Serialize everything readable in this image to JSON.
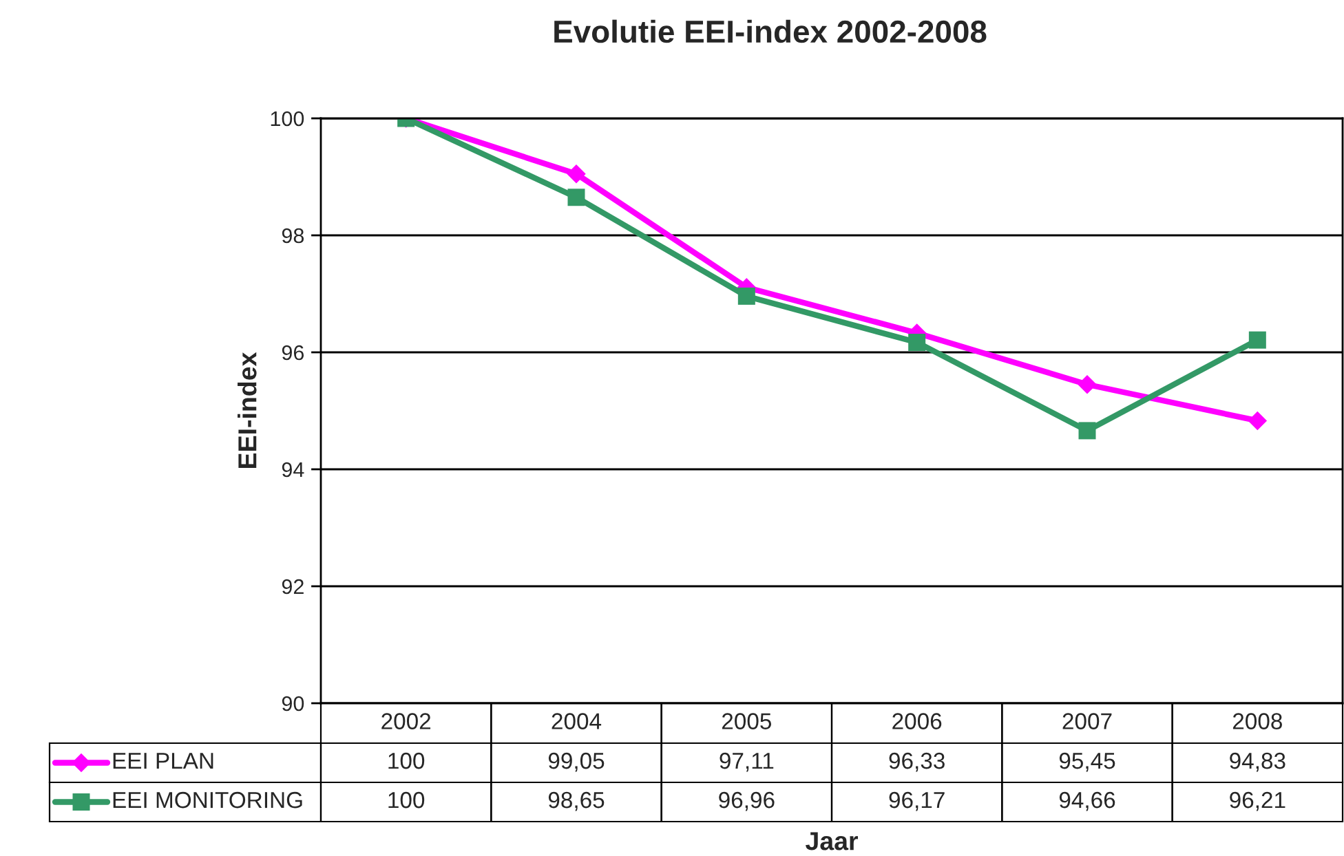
{
  "chart_data": {
    "type": "line",
    "title": "Evolutie EEI-index 2002-2008",
    "xlabel": "Jaar",
    "ylabel": "EEI-index",
    "categories": [
      "2002",
      "2004",
      "2005",
      "2006",
      "2007",
      "2008"
    ],
    "series": [
      {
        "name": "EEI PLAN",
        "color": "#ff00ff",
        "marker": "diamond",
        "values": [
          100,
          99.05,
          97.11,
          96.33,
          95.45,
          94.83
        ],
        "value_labels": [
          "100",
          "99,05",
          "97,11",
          "96,33",
          "95,45",
          "94,83"
        ]
      },
      {
        "name": "EEI MONITORING",
        "color": "#339966",
        "marker": "square",
        "values": [
          100,
          98.65,
          96.96,
          96.17,
          94.66,
          96.21
        ],
        "value_labels": [
          "100",
          "98,65",
          "96,96",
          "96,17",
          "94,66",
          "96,21"
        ]
      }
    ],
    "ylim": [
      90,
      100
    ],
    "yticks": [
      90,
      92,
      94,
      96,
      98,
      100
    ],
    "grid": "y",
    "legend": "bottom",
    "line_style": "solid"
  }
}
